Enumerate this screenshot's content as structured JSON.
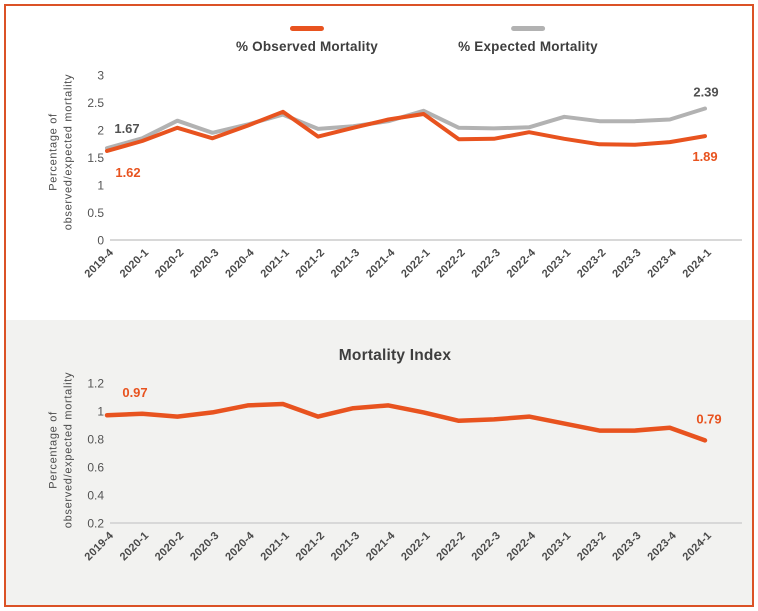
{
  "page": {
    "border_color": "#DB5226",
    "background": "#FFFFFF",
    "panel_background": "#F2F2F0"
  },
  "legend": {
    "items": [
      {
        "label": "% Observed Mortality",
        "color": "#E8531F"
      },
      {
        "label": "% Expected Mortality",
        "color": "#B2B2B2"
      }
    ]
  },
  "top_chart": {
    "y_axis_title_line1": "Percentage of",
    "y_axis_title_line2": "observed/expected mortality"
  },
  "bottom_chart": {
    "title": "Mortality Index",
    "y_axis_title_line1": "Percentage of",
    "y_axis_title_line2": "observed/expected mortality"
  },
  "chart_data": [
    {
      "type": "line",
      "title": "",
      "ylabel": "Percentage of observed/expected mortality",
      "legend_position": "top",
      "grid": false,
      "categories": [
        "2019-4",
        "2020-1",
        "2020-2",
        "2020-3",
        "2020-4",
        "2021-1",
        "2021-2",
        "2021-3",
        "2021-4",
        "2022-1",
        "2022-2",
        "2022-3",
        "2022-4",
        "2023-1",
        "2023-2",
        "2023-3",
        "2023-4",
        "2024-1"
      ],
      "ylim": [
        0,
        3
      ],
      "ytick_values": [
        0,
        0.5,
        1,
        1.5,
        2,
        2.5,
        3
      ],
      "ytick_labels": [
        "0",
        "0.5",
        "1",
        "1.5",
        "2",
        "2.5",
        "3"
      ],
      "series": [
        {
          "id": "expected",
          "name": "% Expected Mortality",
          "color": "#B2B2B2",
          "values": [
            1.67,
            1.85,
            2.17,
            1.95,
            2.1,
            2.28,
            2.02,
            2.07,
            2.16,
            2.35,
            2.04,
            2.03,
            2.05,
            2.24,
            2.16,
            2.16,
            2.19,
            2.39
          ]
        },
        {
          "id": "observed",
          "name": "% Observed Mortality",
          "color": "#E8531F",
          "values": [
            1.62,
            1.8,
            2.04,
            1.85,
            2.08,
            2.33,
            1.88,
            2.04,
            2.19,
            2.29,
            1.83,
            1.84,
            1.96,
            1.84,
            1.74,
            1.73,
            1.78,
            1.89
          ]
        }
      ],
      "annotations": [
        {
          "text": "1.67",
          "series": "expected",
          "point": 0,
          "color": "#515151"
        },
        {
          "text": "1.62",
          "series": "observed",
          "point": 0,
          "color": "#E8531F"
        },
        {
          "text": "2.39",
          "series": "expected",
          "point": 17,
          "color": "#515151"
        },
        {
          "text": "1.89",
          "series": "observed",
          "point": 17,
          "color": "#E8531F"
        }
      ]
    },
    {
      "type": "line",
      "title": "Mortality Index",
      "ylabel": "Percentage of observed/expected mortality",
      "grid": false,
      "categories": [
        "2019-4",
        "2020-1",
        "2020-2",
        "2020-3",
        "2020-4",
        "2021-1",
        "2021-2",
        "2021-3",
        "2021-4",
        "2022-1",
        "2022-2",
        "2022-3",
        "2022-4",
        "2023-1",
        "2023-2",
        "2023-3",
        "2023-4",
        "2024-1"
      ],
      "ylim": [
        0.2,
        1.2
      ],
      "ytick_values": [
        0.2,
        0.4,
        0.6,
        0.8,
        1.0,
        1.2
      ],
      "ytick_labels": [
        "0.2",
        "0.4",
        "0.6",
        "0.8",
        "1",
        "1.2"
      ],
      "series": [
        {
          "id": "index",
          "name": "Mortality Index",
          "color": "#E8531F",
          "values": [
            0.97,
            0.98,
            0.96,
            0.99,
            1.04,
            1.05,
            0.96,
            1.02,
            1.04,
            0.99,
            0.93,
            0.94,
            0.96,
            0.91,
            0.86,
            0.86,
            0.88,
            0.79
          ]
        }
      ],
      "annotations": [
        {
          "text": "0.97",
          "series": "index",
          "point": 0,
          "color": "#E8531F"
        },
        {
          "text": "0.79",
          "series": "index",
          "point": 17,
          "color": "#E8531F"
        }
      ]
    }
  ]
}
